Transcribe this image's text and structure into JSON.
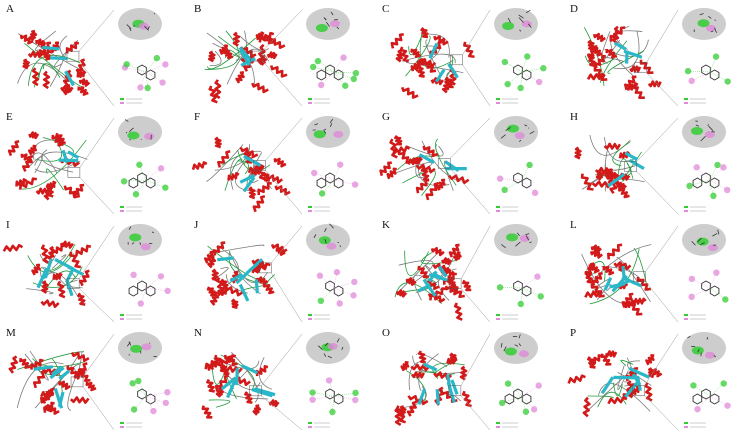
{
  "figure": {
    "panels": [
      {
        "label": "A"
      },
      {
        "label": "B"
      },
      {
        "label": "C"
      },
      {
        "label": "D"
      },
      {
        "label": "E"
      },
      {
        "label": "F"
      },
      {
        "label": "G"
      },
      {
        "label": "H"
      },
      {
        "label": "I"
      },
      {
        "label": "J"
      },
      {
        "label": "K"
      },
      {
        "label": "L"
      },
      {
        "label": "M"
      },
      {
        "label": "N"
      },
      {
        "label": "O"
      },
      {
        "label": "P"
      }
    ],
    "colors": {
      "helix": "#d21a1a",
      "sheet": "#2ab7c8",
      "loop": "#1f9a3a",
      "surface": "#c8c8c8",
      "hbond": "#33cc33",
      "hydrophobic": "#e08ad8",
      "ligand": "#333333",
      "zoom_line": "#9a9a9a"
    }
  }
}
